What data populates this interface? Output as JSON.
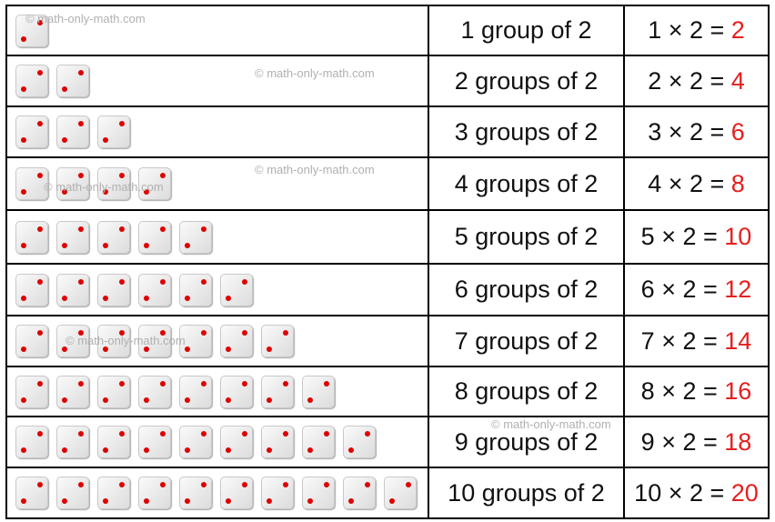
{
  "table": {
    "rows": [
      {
        "label": "1 group of 2",
        "equation": "1 × 2 =",
        "result": "2"
      },
      {
        "label": "2 groups of 2",
        "equation": "2 × 2 =",
        "result": "4"
      },
      {
        "label": "3 groups of 2",
        "equation": "3 × 2 =",
        "result": "6"
      },
      {
        "label": "4 groups of 2",
        "equation": "4 × 2 =",
        "result": "8"
      },
      {
        "label": "5 groups of 2",
        "equation": "5 × 2 =",
        "result": "10"
      },
      {
        "label": "6 groups of 2",
        "equation": "6 × 2 =",
        "result": "12"
      },
      {
        "label": "7 groups of 2",
        "equation": "7 × 2 =",
        "result": "14"
      },
      {
        "label": "8 groups of 2",
        "equation": "8 × 2 =",
        "result": "16"
      },
      {
        "label": "9 groups of 2",
        "equation": "9 × 2 =",
        "result": "18"
      },
      {
        "label": "10 groups of 2",
        "equation": "10 × 2 =",
        "result": "20"
      }
    ]
  },
  "watermarks": [
    "© math-only-math.com",
    "© math-only-math.com",
    "© math-only-math.com",
    "© math-only-math.com",
    "© math-only-math.com",
    "© math-only-math.com"
  ]
}
